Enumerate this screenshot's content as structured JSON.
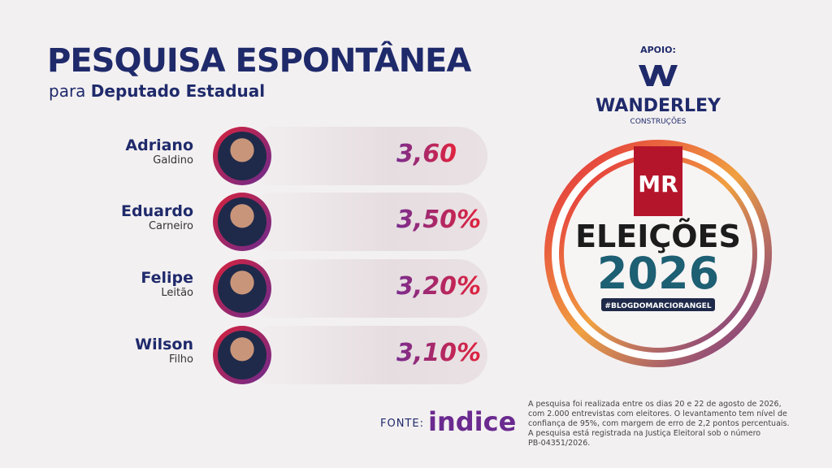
{
  "header": {
    "title": "PESQUISA ESPONTÂNEA",
    "subtitle_prefix": "para",
    "subtitle": "Deputado Estadual"
  },
  "sponsor": {
    "label": "APOIO:",
    "name": "WANDERLEY",
    "tagline": "CONSTRUÇÕES"
  },
  "candidates": [
    {
      "first": "Adriano",
      "last": "Galdino",
      "value": "3,60"
    },
    {
      "first": "Eduardo",
      "last": "Carneiro",
      "value": "3,50%"
    },
    {
      "first": "Felipe",
      "last": "Leitão",
      "value": "3,20%"
    },
    {
      "first": "Wilson",
      "last": "Filho",
      "value": "3,10%"
    }
  ],
  "badge": {
    "brand": "MR",
    "line1": "ELEIÇÕES",
    "line2": "2026",
    "hashtag": "#BLOGDOMARCIORANGEL"
  },
  "source": {
    "label": "FONTE:",
    "name": "indice",
    "note": [
      "A pesquisa foi realizada entre os dias 20 e 22 de agosto de 2026,",
      "com 2.000 entrevistas com eleitores. O levantamento tem nível de",
      "confiança de 95%, com margem de erro de 2,2 pontos percentuais.",
      "A pesquisa está registrada na Justiça Eleitoral sob o número",
      "PB-04351/2026."
    ]
  }
}
